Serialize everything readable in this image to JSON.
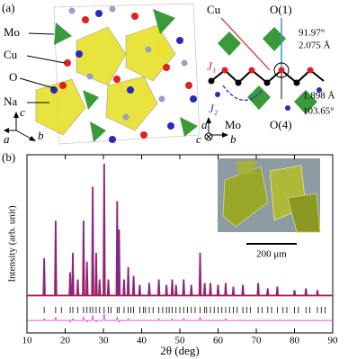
{
  "panel_a": {
    "label": "(a)",
    "left_structure": {
      "labels": [
        "Mo",
        "Cu",
        "O",
        "Na"
      ],
      "axes": [
        "c",
        "a",
        "b"
      ]
    },
    "right_structure": {
      "cu": "Cu",
      "o1": "O(1)",
      "angle1": "91.97°",
      "bond1": "2.075 Å",
      "j1": "J₁",
      "j2": "J₂",
      "bond2": "1.898 Å",
      "mo": "Mo",
      "o4": "O(4)",
      "angle2": "103.65°",
      "axes": [
        "a",
        "b",
        "c"
      ]
    }
  },
  "chart_data": {
    "type": "line",
    "panel_label": "(b)",
    "x_label": "2θ (deg)",
    "y_label": "Intensity (arb. unit)",
    "inset": {
      "scale_bar": "200 μm"
    },
    "xlim": [
      10,
      90
    ],
    "xticks": [
      10,
      20,
      30,
      40,
      50,
      60,
      70,
      80,
      90
    ],
    "ylim": [
      0,
      100
    ],
    "x": [
      10,
      14.3,
      14.5,
      14.7,
      17.3,
      17.5,
      17.7,
      21.1,
      21.3,
      21.5,
      21.8,
      22.0,
      22.2,
      23.1,
      23.3,
      23.5,
      24.6,
      24.8,
      25.0,
      25.5,
      25.7,
      25.9,
      27.0,
      27.2,
      27.4,
      27.9,
      28.1,
      28.3,
      28.8,
      29.0,
      29.2,
      30.0,
      30.2,
      30.4,
      31.1,
      31.3,
      31.5,
      33.4,
      33.6,
      33.8,
      33.9,
      34.1,
      34.3,
      35.2,
      35.4,
      35.6,
      36.3,
      36.5,
      36.7,
      37.7,
      37.9,
      38.1,
      39.3,
      39.5,
      39.7,
      41.8,
      42.0,
      42.2,
      44.3,
      44.5,
      44.7,
      46.3,
      46.5,
      46.7,
      47.8,
      48.0,
      48.2,
      48.8,
      49.0,
      49.2,
      50.8,
      51.0,
      51.2,
      52.8,
      53.0,
      53.2,
      55.1,
      55.3,
      55.5,
      56.3,
      56.5,
      56.7,
      57.8,
      58.0,
      58.2,
      59.8,
      60.0,
      60.2,
      61.8,
      62.0,
      62.2,
      63.8,
      64.0,
      64.2,
      66.3,
      66.5,
      66.7,
      70.3,
      70.5,
      70.7,
      72.8,
      73.0,
      73.2,
      75.3,
      75.5,
      75.7,
      79.8,
      80.0,
      80.2,
      82.8,
      83.0,
      83.2,
      85.8,
      86.0,
      86.2,
      90
    ],
    "series": [
      {
        "color": "#e8101a",
        "values": [
          21,
          21,
          42,
          21,
          21,
          63,
          21,
          21,
          34,
          21,
          21,
          45,
          21,
          21,
          30,
          21,
          21,
          63,
          21,
          21,
          40,
          21,
          21,
          82,
          21,
          21,
          45,
          21,
          21,
          30,
          21,
          21,
          95,
          21,
          21,
          30,
          21,
          21,
          74,
          21,
          21,
          58,
          21,
          21,
          30,
          21,
          21,
          37,
          21,
          21,
          32,
          21,
          21,
          27,
          21,
          21,
          28,
          21,
          21,
          30,
          21,
          21,
          27,
          21,
          21,
          30,
          21,
          21,
          27,
          21,
          21,
          30,
          21,
          21,
          27,
          21,
          21,
          45,
          21,
          21,
          28,
          21,
          21,
          28,
          21,
          21,
          27,
          21,
          21,
          28,
          21,
          21,
          26,
          21,
          21,
          27,
          21,
          21,
          28,
          21,
          21,
          25,
          21,
          21,
          26,
          21,
          21,
          24,
          21,
          21,
          25,
          21,
          21,
          24,
          21,
          21
        ]
      },
      {
        "color": "#3a3ad8",
        "values": [
          21,
          21,
          42,
          21,
          21,
          63,
          21,
          21,
          34,
          21,
          21,
          45,
          21,
          21,
          30,
          21,
          21,
          63,
          21,
          21,
          40,
          21,
          21,
          82,
          21,
          21,
          45,
          21,
          21,
          30,
          21,
          21,
          95,
          21,
          21,
          30,
          21,
          21,
          74,
          21,
          21,
          58,
          21,
          21,
          30,
          21,
          21,
          37,
          21,
          21,
          32,
          21,
          21,
          27,
          21,
          21,
          28,
          21,
          21,
          30,
          21,
          21,
          27,
          21,
          21,
          30,
          21,
          21,
          27,
          21,
          21,
          30,
          21,
          21,
          27,
          21,
          21,
          45,
          21,
          21,
          28,
          21,
          21,
          28,
          21,
          21,
          27,
          21,
          21,
          28,
          21,
          21,
          26,
          21,
          21,
          27,
          21,
          21,
          28,
          21,
          21,
          25,
          21,
          21,
          26,
          21,
          21,
          24,
          21,
          21,
          25,
          21,
          21,
          24,
          21,
          21
        ]
      },
      {
        "color": "#e020e0",
        "values": [
          7,
          7,
          8,
          7,
          7,
          9,
          7,
          7,
          6,
          7,
          7,
          8,
          7,
          7,
          7,
          7,
          7,
          9,
          7,
          7,
          6,
          7,
          7,
          10,
          7,
          7,
          6,
          7,
          7,
          7,
          7,
          7,
          11,
          7,
          7,
          7,
          7,
          7,
          9,
          7,
          7,
          6,
          7,
          7,
          7,
          7,
          7,
          8,
          7,
          7,
          7,
          7,
          7,
          7,
          7,
          7,
          7,
          7,
          7,
          8,
          7,
          7,
          7,
          7,
          7,
          8,
          7,
          7,
          7,
          7,
          7,
          8,
          7,
          7,
          7,
          7,
          7,
          9,
          7,
          7,
          7,
          7,
          7,
          7,
          7,
          7,
          7,
          7,
          7,
          8,
          7,
          7,
          7,
          7,
          7,
          7,
          7,
          7,
          7,
          7,
          7,
          7,
          7,
          7,
          7,
          7,
          7,
          7,
          7,
          7,
          7,
          7,
          7,
          7,
          7,
          7
        ]
      }
    ],
    "bragg_color": "#000000",
    "bragg": [
      14.5,
      17.5,
      19,
      21.3,
      22,
      23.3,
      24.8,
      25.7,
      26.5,
      27.2,
      28.1,
      29,
      30.2,
      31.3,
      32,
      33.6,
      34.1,
      35.4,
      36.5,
      37.2,
      37.9,
      39.5,
      40.5,
      41,
      42,
      43,
      44.5,
      45.5,
      46.5,
      47.2,
      48,
      49,
      50,
      51,
      52,
      53,
      54,
      55.3,
      56.5,
      57,
      58,
      59,
      60,
      61,
      62,
      63,
      64,
      65,
      66.5,
      67.5,
      68.5,
      70.5,
      71.5,
      73,
      74,
      75.5,
      77,
      78,
      80,
      81,
      83,
      84,
      86,
      87,
      88
    ]
  }
}
